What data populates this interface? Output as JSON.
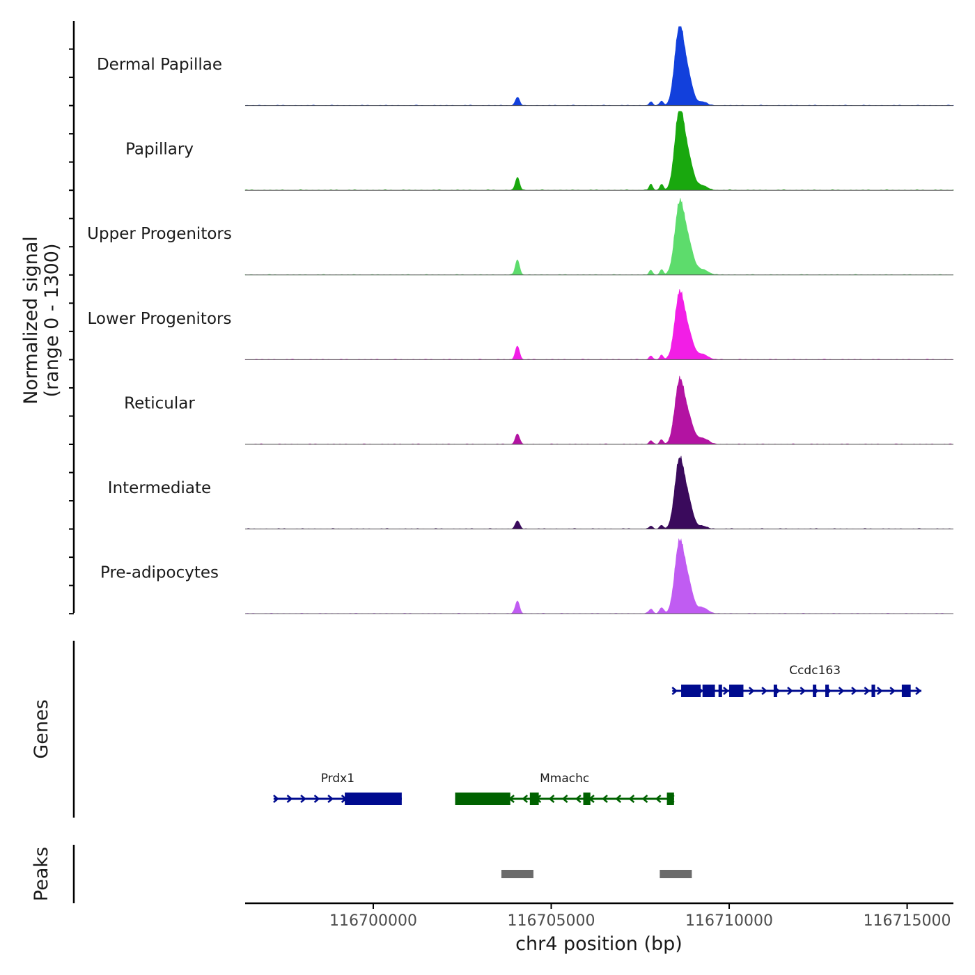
{
  "chart_data": {
    "type": "area",
    "title": "",
    "ylabel_line1": "Normalized signal",
    "ylabel_line2": "(range 0 - 1300)",
    "xlabel": "chr4 position (bp)",
    "ylim": [
      0,
      1300
    ],
    "xlim": [
      116696400,
      116716300
    ],
    "xticks": [
      116700000,
      116705000,
      116710000,
      116715000
    ],
    "xtick_labels": [
      "116700000",
      "116705000",
      "116710000",
      "116715000"
    ],
    "tracks": [
      {
        "name": "Dermal Papillae",
        "color": "#1240dc",
        "peaks": [
          [
            116704050,
            0.11,
            60
          ],
          [
            116707800,
            0.05,
            50
          ],
          [
            116708100,
            0.06,
            50
          ],
          [
            116708600,
            1.0,
            130
          ],
          [
            116708850,
            0.35,
            130
          ],
          [
            116709250,
            0.05,
            120
          ]
        ]
      },
      {
        "name": "Papillary",
        "color": "#19a80e",
        "peaks": [
          [
            116704050,
            0.17,
            60
          ],
          [
            116707800,
            0.08,
            50
          ],
          [
            116708100,
            0.08,
            50
          ],
          [
            116708600,
            1.0,
            130
          ],
          [
            116708850,
            0.4,
            140
          ],
          [
            116709250,
            0.06,
            140
          ]
        ]
      },
      {
        "name": "Upper Progenitors",
        "color": "#5ddc6c",
        "peaks": [
          [
            116704050,
            0.2,
            60
          ],
          [
            116707800,
            0.06,
            50
          ],
          [
            116708100,
            0.07,
            50
          ],
          [
            116708600,
            0.88,
            130
          ],
          [
            116708850,
            0.4,
            140
          ],
          [
            116709250,
            0.07,
            160
          ]
        ]
      },
      {
        "name": "Lower Progenitors",
        "color": "#f21ee6",
        "peaks": [
          [
            116704050,
            0.18,
            60
          ],
          [
            116707800,
            0.05,
            50
          ],
          [
            116708100,
            0.06,
            50
          ],
          [
            116708600,
            0.82,
            130
          ],
          [
            116708850,
            0.33,
            140
          ],
          [
            116709250,
            0.07,
            150
          ]
        ]
      },
      {
        "name": "Reticular",
        "color": "#b313a2",
        "peaks": [
          [
            116704050,
            0.14,
            60
          ],
          [
            116707800,
            0.05,
            50
          ],
          [
            116708100,
            0.06,
            50
          ],
          [
            116708600,
            0.78,
            130
          ],
          [
            116708850,
            0.33,
            140
          ],
          [
            116709250,
            0.08,
            160
          ]
        ]
      },
      {
        "name": "Intermediate",
        "color": "#3a0a5c",
        "peaks": [
          [
            116704050,
            0.11,
            60
          ],
          [
            116707800,
            0.04,
            50
          ],
          [
            116708100,
            0.05,
            50
          ],
          [
            116708600,
            0.87,
            130
          ],
          [
            116708850,
            0.35,
            130
          ],
          [
            116709250,
            0.04,
            120
          ]
        ]
      },
      {
        "name": "Pre-adipocytes",
        "color": "#c05cf2",
        "peaks": [
          [
            116704050,
            0.17,
            60
          ],
          [
            116707800,
            0.06,
            60
          ],
          [
            116708100,
            0.08,
            60
          ],
          [
            116708600,
            0.9,
            130
          ],
          [
            116708850,
            0.38,
            130
          ],
          [
            116709250,
            0.08,
            150
          ]
        ]
      }
    ],
    "genes_label": "Genes",
    "genes": [
      {
        "name": "Ccdc163",
        "strand": "+",
        "color": "#000b8f",
        "row": 0,
        "start": 116708400,
        "end": 116715400,
        "exons": [
          [
            116708650,
            116709200
          ],
          [
            116709250,
            116709600
          ],
          [
            116709700,
            116709800
          ],
          [
            116710000,
            116710400
          ],
          [
            116711250,
            116711330
          ],
          [
            116712350,
            116712430
          ],
          [
            116712700,
            116712800
          ],
          [
            116714000,
            116714100
          ],
          [
            116714850,
            116715100
          ]
        ]
      },
      {
        "name": "Prdx1",
        "strand": "+",
        "color": "#000b8f",
        "row": 1,
        "start": 116697200,
        "end": 116700800,
        "exons": [
          [
            116699200,
            116700800
          ]
        ]
      },
      {
        "name": "Mmachc",
        "strand": "-",
        "color": "#006200",
        "row": 1,
        "start": 116702300,
        "end": 116708450,
        "exons": [
          [
            116702300,
            116703850
          ],
          [
            116704400,
            116704650
          ],
          [
            116705900,
            116706100
          ],
          [
            116708250,
            116708450
          ]
        ]
      }
    ],
    "peaks_label": "Peaks",
    "peak_regions": [
      [
        116703600,
        116704500
      ],
      [
        116708050,
        116708950
      ]
    ]
  }
}
